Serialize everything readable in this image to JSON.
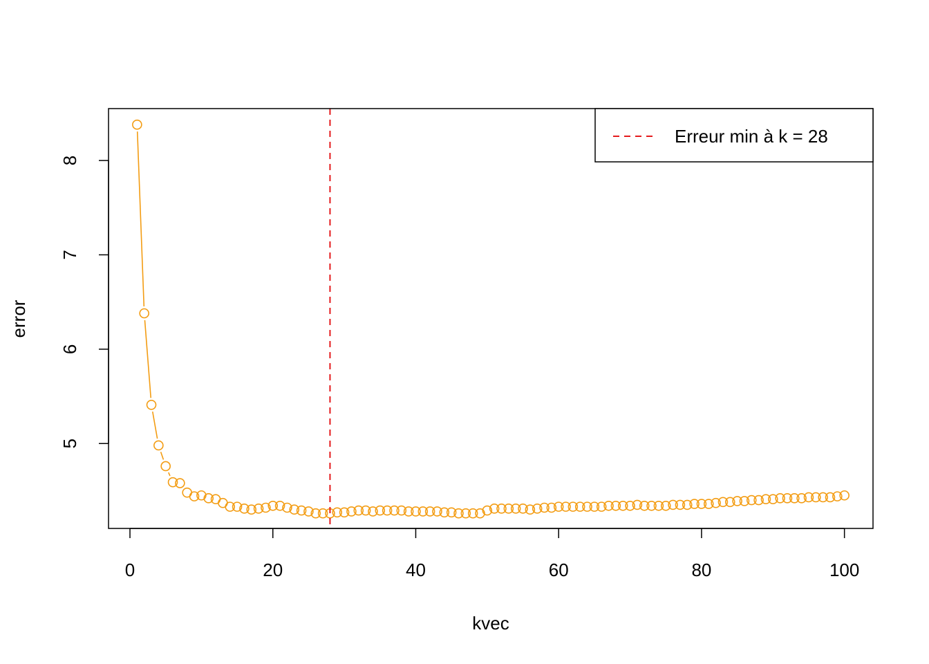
{
  "chart_data": {
    "type": "line",
    "xlabel": "kvec",
    "ylabel": "error",
    "xlim": [
      -3,
      104
    ],
    "ylim": [
      4.1,
      8.55
    ],
    "x_ticks": [
      0,
      20,
      40,
      60,
      80,
      100
    ],
    "y_ticks": [
      5,
      6,
      7,
      8
    ],
    "series": [
      {
        "color": "#F39C12",
        "marker": "open-circle",
        "x": [
          1,
          2,
          3,
          4,
          5,
          6,
          7,
          8,
          9,
          10,
          11,
          12,
          13,
          14,
          15,
          16,
          17,
          18,
          19,
          20,
          21,
          22,
          23,
          24,
          25,
          26,
          27,
          28,
          29,
          30,
          31,
          32,
          33,
          34,
          35,
          36,
          37,
          38,
          39,
          40,
          41,
          42,
          43,
          44,
          45,
          46,
          47,
          48,
          49,
          50,
          51,
          52,
          53,
          54,
          55,
          56,
          57,
          58,
          59,
          60,
          61,
          62,
          63,
          64,
          65,
          66,
          67,
          68,
          69,
          70,
          71,
          72,
          73,
          74,
          75,
          76,
          77,
          78,
          79,
          80,
          81,
          82,
          83,
          84,
          85,
          86,
          87,
          88,
          89,
          90,
          91,
          92,
          93,
          94,
          95,
          96,
          97,
          98,
          99,
          100
        ],
        "y": [
          8.38,
          6.38,
          5.41,
          4.98,
          4.76,
          4.59,
          4.58,
          4.48,
          4.44,
          4.45,
          4.42,
          4.41,
          4.37,
          4.33,
          4.33,
          4.31,
          4.3,
          4.31,
          4.32,
          4.34,
          4.34,
          4.32,
          4.3,
          4.29,
          4.28,
          4.26,
          4.26,
          4.26,
          4.27,
          4.27,
          4.28,
          4.29,
          4.29,
          4.28,
          4.29,
          4.29,
          4.29,
          4.29,
          4.28,
          4.28,
          4.28,
          4.28,
          4.28,
          4.27,
          4.27,
          4.26,
          4.26,
          4.26,
          4.26,
          4.29,
          4.31,
          4.31,
          4.31,
          4.31,
          4.31,
          4.3,
          4.31,
          4.32,
          4.32,
          4.33,
          4.33,
          4.33,
          4.33,
          4.33,
          4.33,
          4.33,
          4.34,
          4.34,
          4.34,
          4.34,
          4.35,
          4.34,
          4.34,
          4.34,
          4.34,
          4.35,
          4.35,
          4.35,
          4.36,
          4.36,
          4.36,
          4.37,
          4.38,
          4.38,
          4.39,
          4.39,
          4.4,
          4.4,
          4.41,
          4.41,
          4.42,
          4.42,
          4.42,
          4.42,
          4.43,
          4.43,
          4.43,
          4.43,
          4.44,
          4.45
        ]
      }
    ],
    "vline": {
      "x": 28,
      "color": "#E41A1C",
      "style": "dashed"
    },
    "legend": {
      "position": "top-right",
      "entries": [
        {
          "label": "Erreur min à k = 28",
          "color": "#E41A1C",
          "style": "dashed"
        }
      ]
    },
    "grid": false
  }
}
